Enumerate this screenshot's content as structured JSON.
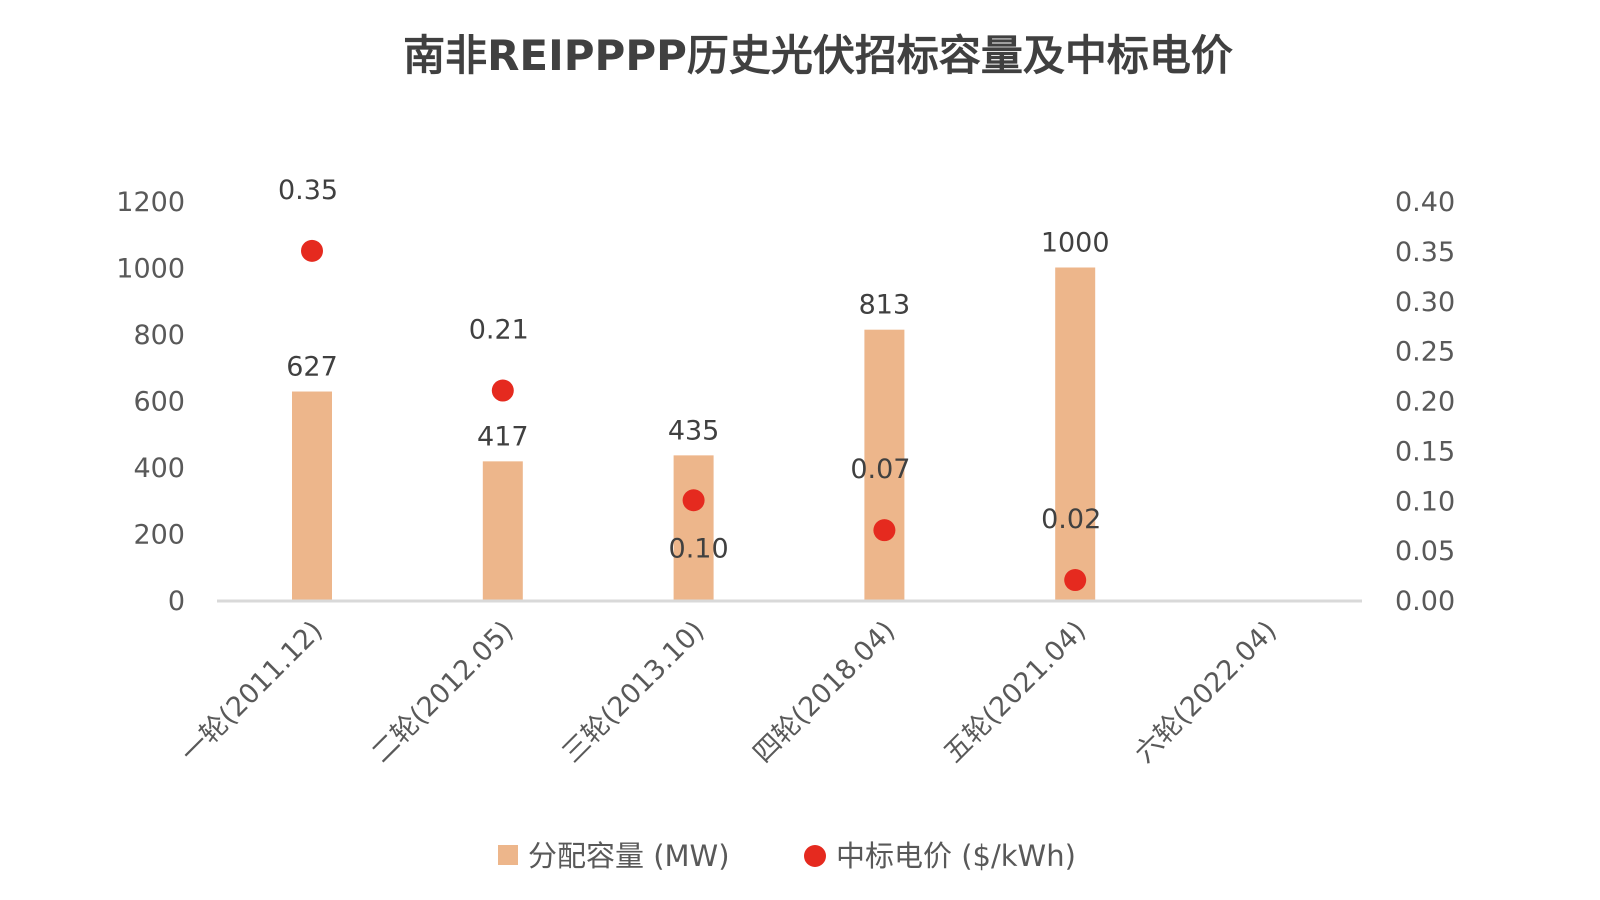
{
  "chart_data": {
    "type": "bar",
    "title": "南非REIPPPP历史光伏招标容量及中标电价",
    "categories": [
      "一轮(2011.12)",
      "二轮(2012.05)",
      "三轮(2013.10)",
      "四轮(2018.04)",
      "五轮(2021.04)",
      "六轮(2022.04)"
    ],
    "series": [
      {
        "name": "分配容量 (MW)",
        "kind": "bar",
        "axis": "left",
        "color": "#EDB68B",
        "values": [
          627,
          417,
          435,
          813,
          1000,
          null
        ],
        "labels": [
          "627",
          "417",
          "435",
          "813",
          "1000",
          null
        ]
      },
      {
        "name": "中标电价 ($/kWh)",
        "kind": "scatter",
        "axis": "right",
        "color": "#E52A1F",
        "values": [
          0.35,
          0.21,
          0.1,
          0.07,
          0.02,
          null
        ],
        "labels": [
          "0.35",
          "0.21",
          "0.10",
          "0.07",
          "0.02",
          null
        ],
        "label_position": [
          "above",
          "above",
          "below",
          "above",
          "above",
          null
        ]
      }
    ],
    "ylim_left": [
      0,
      1200
    ],
    "yticks_left": [
      "0",
      "200",
      "400",
      "600",
      "800",
      "1000",
      "1200"
    ],
    "ylim_right": [
      0,
      0.4
    ],
    "yticks_right": [
      "0.00",
      "0.05",
      "0.10",
      "0.15",
      "0.20",
      "0.25",
      "0.30",
      "0.35",
      "0.40"
    ],
    "grid": false,
    "legend_position": "bottom"
  }
}
